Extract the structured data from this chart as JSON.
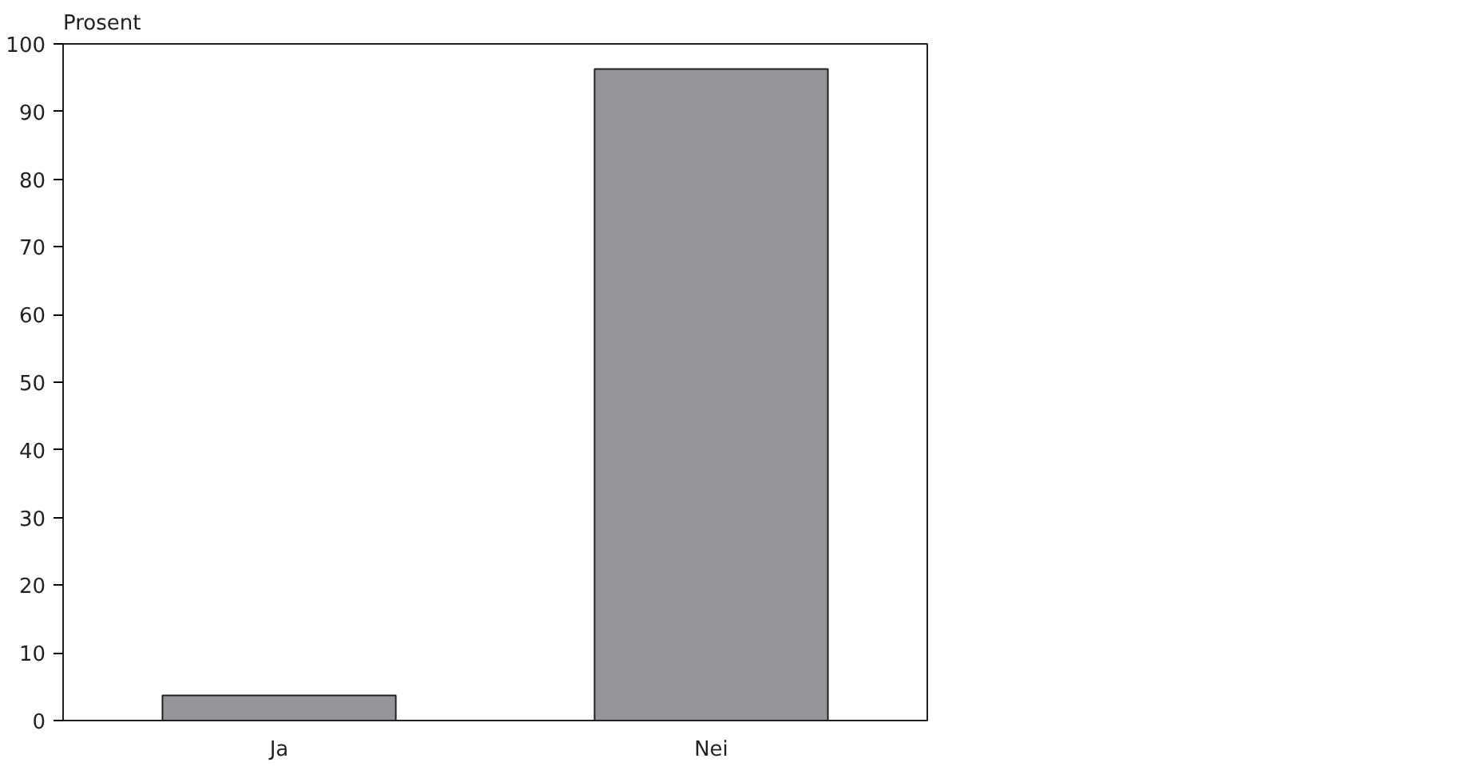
{
  "chart_data": {
    "type": "bar",
    "ylabel": "Prosent",
    "categories": [
      "Ja",
      "Nei"
    ],
    "values": [
      3.7,
      96.3
    ],
    "color": "#939598",
    "ylim": [
      0,
      100
    ],
    "yticks": [
      0,
      10,
      20,
      30,
      40,
      50,
      60,
      70,
      80,
      90,
      100
    ],
    "grid": false
  }
}
